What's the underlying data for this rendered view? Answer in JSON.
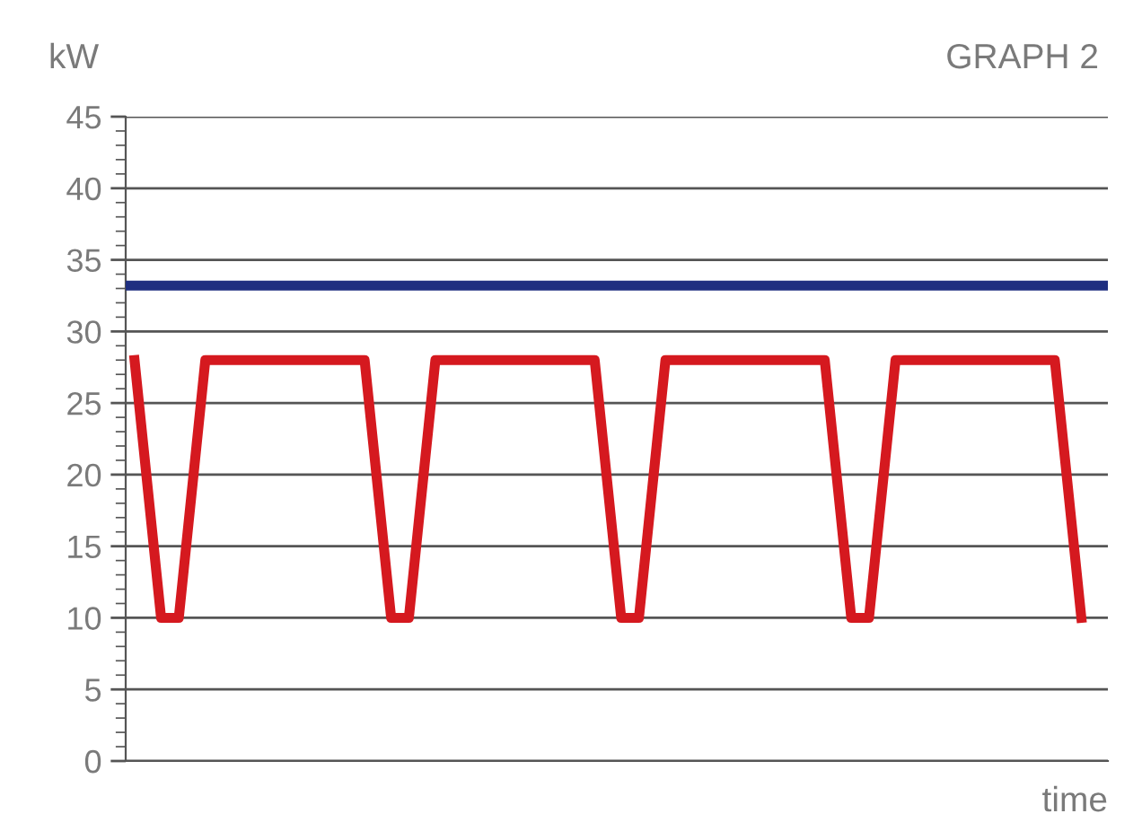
{
  "chart_data": {
    "type": "line",
    "title": "GRAPH 2",
    "ylabel": "kW",
    "xlabel": "time",
    "categories": [
      null,
      null,
      null,
      null,
      null,
      null,
      null,
      null,
      null,
      null,
      null,
      null,
      null,
      null,
      null,
      null,
      null,
      null,
      null,
      null,
      null,
      null,
      null,
      null,
      null,
      null,
      null,
      null,
      null,
      null,
      null,
      null,
      null,
      null,
      null,
      null,
      null,
      null,
      null,
      null,
      null,
      null,
      null,
      null,
      null,
      null,
      null,
      null,
      null,
      null,
      null,
      null,
      null,
      null,
      null,
      null,
      null,
      null,
      null,
      null,
      null,
      null,
      null,
      null,
      null,
      null,
      null,
      null,
      null,
      null,
      null,
      null,
      null,
      null,
      null,
      null,
      null,
      null,
      null,
      null,
      null,
      null,
      null,
      null,
      null,
      null,
      null,
      null,
      null,
      null,
      null,
      null,
      null,
      null,
      null,
      null,
      null,
      null,
      null,
      null,
      null,
      null,
      null,
      null,
      null,
      null,
      null,
      null,
      null,
      null,
      null,
      null
    ],
    "series": [
      {
        "color": "#d5191f",
        "values": [
          null,
          28,
          22,
          16,
          10,
          10,
          10,
          16,
          22,
          28,
          28,
          28,
          28,
          28,
          28,
          28,
          28,
          28,
          28,
          28,
          28,
          28,
          28,
          28,
          28,
          28,
          28,
          28,
          22,
          16,
          10,
          10,
          10,
          16,
          22,
          28,
          28,
          28,
          28,
          28,
          28,
          28,
          28,
          28,
          28,
          28,
          28,
          28,
          28,
          28,
          28,
          28,
          28,
          28,
          22,
          16,
          10,
          10,
          10,
          16,
          22,
          28,
          28,
          28,
          28,
          28,
          28,
          28,
          28,
          28,
          28,
          28,
          28,
          28,
          28,
          28,
          28,
          28,
          28,
          28,
          22,
          16,
          10,
          10,
          10,
          16,
          22,
          28,
          28,
          28,
          28,
          28,
          28,
          28,
          28,
          28,
          28,
          28,
          28,
          28,
          28,
          28,
          28,
          28,
          28,
          28,
          22,
          16,
          10,
          null,
          null,
          null
        ]
      }
    ],
    "ref_lines": [
      {
        "axis": "y",
        "value": 33.2,
        "label": null,
        "color": "#1f2f80"
      }
    ],
    "ylim": [
      0,
      45
    ],
    "yticks": [
      0,
      5,
      10,
      15,
      20,
      25,
      30,
      35,
      40,
      45
    ],
    "tick_labels": "y",
    "grid": "y",
    "legend": false,
    "marker": "none",
    "line_style": "solid"
  }
}
